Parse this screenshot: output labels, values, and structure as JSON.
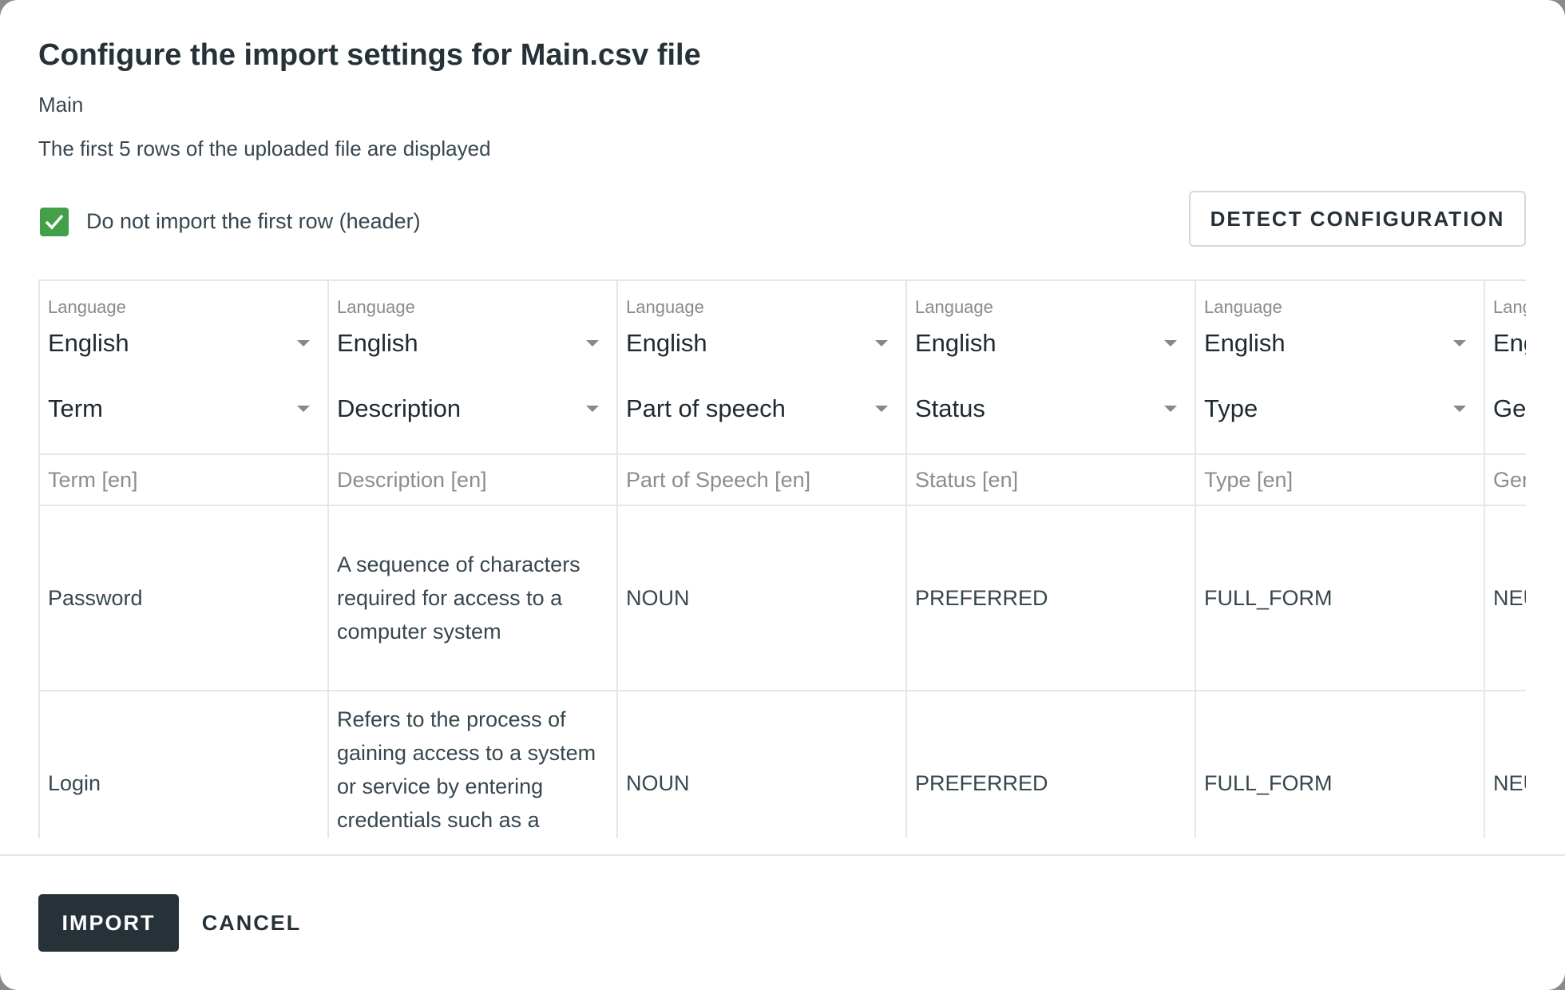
{
  "dialog": {
    "title": "Configure the import settings for Main.csv file",
    "subtitle": "Main",
    "info": "The first 5 rows of the uploaded file are displayed",
    "skip_header": {
      "label": "Do not import the first row (header)",
      "checked": true
    },
    "detect_label": "DETECT CONFIGURATION",
    "import_label": "IMPORT",
    "cancel_label": "CANCEL"
  },
  "colors": {
    "accent": "#263238",
    "checkbox": "#43a047"
  },
  "table": {
    "language_label": "Language",
    "columns": [
      {
        "language": "English",
        "field": "Term",
        "header": "Term [en]",
        "rows": [
          "Password",
          "Login"
        ]
      },
      {
        "language": "English",
        "field": "Description",
        "header": "Description [en]",
        "rows": [
          "A sequence of characters required for access to a computer system",
          "Refers to the process of gaining access to a system or service by entering credentials such as a"
        ]
      },
      {
        "language": "English",
        "field": "Part of speech",
        "header": "Part of Speech [en]",
        "rows": [
          "NOUN",
          "NOUN"
        ]
      },
      {
        "language": "English",
        "field": "Status",
        "header": "Status [en]",
        "rows": [
          "PREFERRED",
          "PREFERRED"
        ]
      },
      {
        "language": "English",
        "field": "Type",
        "header": "Type [en]",
        "rows": [
          "FULL_FORM",
          "FULL_FORM"
        ]
      },
      {
        "language": "English",
        "field": "Gender",
        "header": "Gender [en]",
        "rows": [
          "NEUTER",
          "NEUTER"
        ]
      }
    ]
  }
}
